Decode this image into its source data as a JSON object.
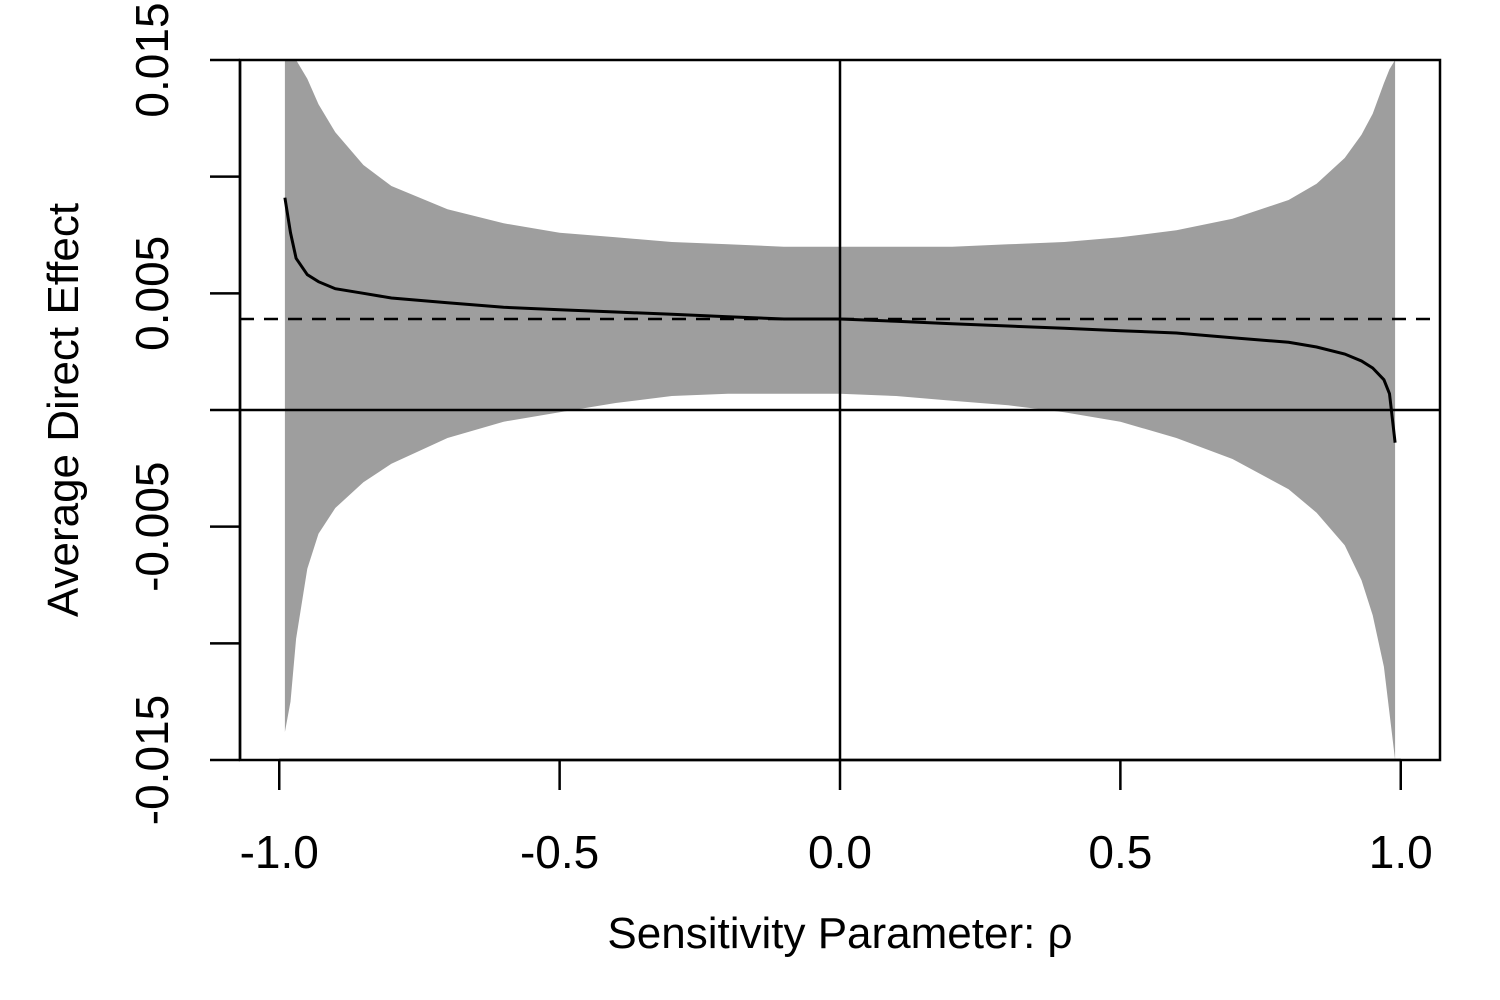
{
  "chart_data": {
    "type": "area",
    "title": "",
    "xlabel": "Sensitivity Parameter: ρ",
    "ylabel": "Average Direct Effect",
    "xlim": [
      -1.07,
      1.07
    ],
    "ylim": [
      -0.015,
      0.015
    ],
    "x_ticks": [
      -1.0,
      -0.5,
      0.0,
      0.5,
      1.0
    ],
    "x_tick_labels": [
      "-1.0",
      "-0.5",
      "0.0",
      "0.5",
      "1.0"
    ],
    "y_ticks": [
      -0.015,
      -0.01,
      -0.005,
      0.0,
      0.005,
      0.01,
      0.015
    ],
    "y_tick_labels": [
      "-0.015",
      "",
      "-0.005",
      "",
      "0.005",
      "",
      "0.015"
    ],
    "reference_lines": {
      "horizontal_zero": 0.0,
      "vertical_zero": 0.0,
      "dashed_estimate": 0.0039
    },
    "grid": false,
    "band_color": "#9e9e9e",
    "line_color": "#000000",
    "series": [
      {
        "kind": "line",
        "x": [
          -0.99,
          -0.98,
          -0.97,
          -0.95,
          -0.93,
          -0.9,
          -0.85,
          -0.8,
          -0.7,
          -0.6,
          -0.5,
          -0.4,
          -0.3,
          -0.2,
          -0.1,
          0.0,
          0.1,
          0.2,
          0.3,
          0.4,
          0.5,
          0.6,
          0.7,
          0.8,
          0.85,
          0.9,
          0.93,
          0.95,
          0.97,
          0.98,
          0.99
        ],
        "y": [
          0.0091,
          0.0076,
          0.0065,
          0.0058,
          0.0055,
          0.0052,
          0.005,
          0.0048,
          0.0046,
          0.0044,
          0.0043,
          0.0042,
          0.0041,
          0.004,
          0.0039,
          0.0039,
          0.0038,
          0.0037,
          0.0036,
          0.0035,
          0.0034,
          0.0033,
          0.0031,
          0.0029,
          0.0027,
          0.0024,
          0.0021,
          0.0018,
          0.0013,
          0.0007,
          -0.0014
        ]
      },
      {
        "kind": "band",
        "x": [
          -0.99,
          -0.98,
          -0.97,
          -0.95,
          -0.93,
          -0.9,
          -0.85,
          -0.8,
          -0.7,
          -0.6,
          -0.5,
          -0.4,
          -0.3,
          -0.2,
          -0.1,
          0.0,
          0.1,
          0.2,
          0.3,
          0.4,
          0.5,
          0.6,
          0.7,
          0.8,
          0.85,
          0.9,
          0.93,
          0.95,
          0.97,
          0.98,
          0.99
        ],
        "upper": [
          0.015,
          0.015,
          0.015,
          0.0142,
          0.0131,
          0.0119,
          0.0105,
          0.0096,
          0.0086,
          0.008,
          0.0076,
          0.0074,
          0.0072,
          0.0071,
          0.007,
          0.007,
          0.007,
          0.007,
          0.0071,
          0.0072,
          0.0074,
          0.0077,
          0.0082,
          0.009,
          0.0097,
          0.0108,
          0.0118,
          0.0127,
          0.014,
          0.0146,
          0.015
        ],
        "lower": [
          -0.0138,
          -0.0125,
          -0.0098,
          -0.0068,
          -0.0053,
          -0.0042,
          -0.0031,
          -0.0023,
          -0.0012,
          -0.0005,
          -0.0001,
          0.0003,
          0.0006,
          0.0007,
          0.0007,
          0.0007,
          0.0006,
          0.0004,
          0.0002,
          -0.0001,
          -0.0005,
          -0.0012,
          -0.0021,
          -0.0034,
          -0.0044,
          -0.0058,
          -0.0073,
          -0.0088,
          -0.011,
          -0.013,
          -0.015
        ]
      }
    ]
  }
}
